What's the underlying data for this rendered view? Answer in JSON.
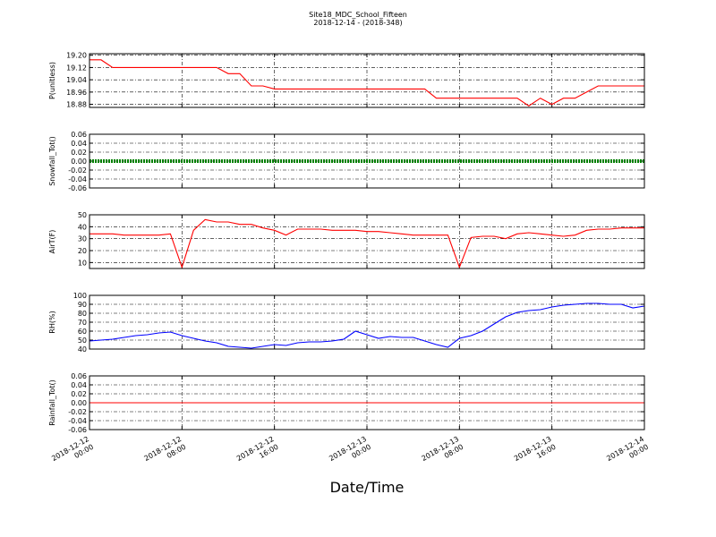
{
  "title": "Site18_MDC_School_Fifteen",
  "subtitle": "2018-12-14 - (2018-348)",
  "x_label": "Date/Time",
  "xlim": [
    "2018-12-12 00:00",
    "2018-12-14 00:00"
  ],
  "xticks": [
    "2018-12-12 00:00",
    "2018-12-12 08:00",
    "2018-12-12 16:00",
    "2018-12-13 00:00",
    "2018-12-13 08:00",
    "2018-12-13 16:00",
    "2018-12-14 00:00"
  ],
  "x": [
    "2018-12-12 00:00",
    "2018-12-12 01:00",
    "2018-12-12 02:00",
    "2018-12-12 03:00",
    "2018-12-12 04:00",
    "2018-12-12 05:00",
    "2018-12-12 06:00",
    "2018-12-12 07:00",
    "2018-12-12 08:00",
    "2018-12-12 09:00",
    "2018-12-12 10:00",
    "2018-12-12 11:00",
    "2018-12-12 12:00",
    "2018-12-12 13:00",
    "2018-12-12 14:00",
    "2018-12-12 15:00",
    "2018-12-12 16:00",
    "2018-12-12 17:00",
    "2018-12-12 18:00",
    "2018-12-12 19:00",
    "2018-12-12 20:00",
    "2018-12-12 21:00",
    "2018-12-12 22:00",
    "2018-12-12 23:00",
    "2018-12-13 00:00",
    "2018-12-13 01:00",
    "2018-12-13 02:00",
    "2018-12-13 03:00",
    "2018-12-13 04:00",
    "2018-12-13 05:00",
    "2018-12-13 06:00",
    "2018-12-13 07:00",
    "2018-12-13 08:00",
    "2018-12-13 09:00",
    "2018-12-13 10:00",
    "2018-12-13 11:00",
    "2018-12-13 12:00",
    "2018-12-13 13:00",
    "2018-12-13 14:00",
    "2018-12-13 15:00",
    "2018-12-13 16:00",
    "2018-12-13 17:00",
    "2018-12-13 18:00",
    "2018-12-13 19:00",
    "2018-12-13 20:00",
    "2018-12-13 21:00",
    "2018-12-13 22:00",
    "2018-12-13 23:00",
    "2018-12-14 00:00"
  ],
  "chart_data": [
    {
      "type": "line",
      "y_label": "P(unitless)",
      "color": "#ff0000",
      "ylim": [
        18.86,
        19.21
      ],
      "yticks": [
        {
          "value": 19.2,
          "label": "19.20"
        },
        19.12,
        19.04,
        18.96,
        18.88
      ],
      "values": [
        19.17,
        19.17,
        19.12,
        19.12,
        19.12,
        19.12,
        19.12,
        19.12,
        19.12,
        19.12,
        19.12,
        19.12,
        19.08,
        19.08,
        19.0,
        19.0,
        18.98,
        18.98,
        18.98,
        18.98,
        18.98,
        18.98,
        18.98,
        18.98,
        18.98,
        18.98,
        18.98,
        18.98,
        18.98,
        18.98,
        18.92,
        18.92,
        18.92,
        18.92,
        18.92,
        18.92,
        18.92,
        18.92,
        18.87,
        18.92,
        18.88,
        18.92,
        18.92,
        18.96,
        19.0,
        19.0,
        19.0,
        19.0,
        19.0
      ]
    },
    {
      "type": "line",
      "y_label": "Snowfall_Tot()",
      "color": "#008000",
      "ylim": [
        -0.06,
        0.06
      ],
      "yticks": [
        0.06,
        0.04,
        0.02,
        {
          "value": 0,
          "label": "0.00"
        },
        -0.02,
        -0.04,
        -0.06
      ],
      "values": [
        0,
        0,
        0,
        0,
        0,
        0,
        0,
        0,
        0,
        0,
        0,
        0,
        0,
        0,
        0,
        0,
        0,
        0,
        0,
        0,
        0,
        0,
        0,
        0,
        0,
        0,
        0,
        0,
        0,
        0,
        0,
        0,
        0,
        0,
        0,
        0,
        0,
        0,
        0,
        0,
        0,
        0,
        0,
        0,
        0,
        0,
        0,
        0,
        0
      ]
    },
    {
      "type": "line",
      "y_label": "AirT(F)",
      "color": "#ff0000",
      "ylim": [
        5,
        50
      ],
      "yticks": [
        50,
        40,
        30,
        20,
        10
      ],
      "values": [
        34,
        34,
        34,
        33,
        33,
        33,
        33,
        34,
        6,
        37,
        46,
        44,
        44,
        42,
        42,
        39,
        37,
        33,
        38,
        38,
        38,
        37,
        37,
        37,
        36,
        36,
        35,
        34,
        33,
        33,
        33,
        33,
        6,
        31,
        32,
        32,
        30,
        34,
        35,
        34,
        33,
        32,
        33,
        37,
        38,
        38,
        39,
        39,
        39
      ]
    },
    {
      "type": "line",
      "y_label": "RH(%)",
      "color": "#0000ff",
      "ylim": [
        40,
        100
      ],
      "yticks": [
        100,
        90,
        80,
        70,
        60,
        50,
        40
      ],
      "values": [
        49,
        50,
        51,
        53,
        55,
        56,
        58,
        59,
        55,
        52,
        49,
        47,
        43,
        42,
        41,
        43,
        45,
        44,
        47,
        48,
        48,
        49,
        51,
        60,
        56,
        52,
        54,
        53,
        53,
        49,
        45,
        42,
        52,
        55,
        60,
        68,
        76,
        81,
        83,
        84,
        87,
        89,
        90,
        91,
        91,
        90,
        90,
        86,
        88
      ]
    },
    {
      "type": "line",
      "y_label": "Rainfall_Tot()",
      "color": "#ff0000",
      "ylim": [
        -0.06,
        0.06
      ],
      "yticks": [
        0.06,
        0.04,
        0.02,
        {
          "value": 0,
          "label": "0.00"
        },
        -0.02,
        -0.04,
        -0.06
      ],
      "values": [
        0,
        0,
        0,
        0,
        0,
        0,
        0,
        0,
        0,
        0,
        0,
        0,
        0,
        0,
        0,
        0,
        0,
        0,
        0,
        0,
        0,
        0,
        0,
        0,
        0,
        0,
        0,
        0,
        0,
        0,
        0,
        0,
        0,
        0,
        0,
        0,
        0,
        0,
        0,
        0,
        0,
        0,
        0,
        0,
        0,
        0,
        0,
        0,
        0
      ]
    }
  ]
}
